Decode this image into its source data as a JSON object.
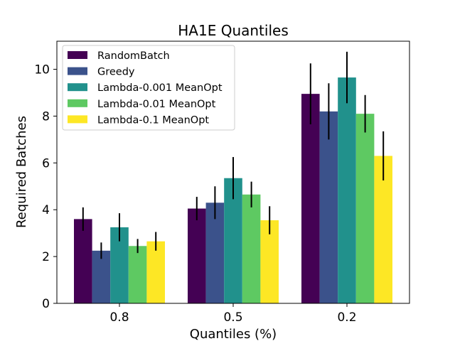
{
  "chart_data": {
    "type": "bar",
    "title": "HA1E Quantiles",
    "xlabel": "Quantiles (%)",
    "ylabel": "Required Batches",
    "categories": [
      "0.8",
      "0.5",
      "0.2"
    ],
    "ylim": [
      0,
      11.2
    ],
    "yticks": [
      0,
      2,
      4,
      6,
      8,
      10
    ],
    "legend_position": "top-left",
    "grid": false,
    "series": [
      {
        "name": "RandomBatch",
        "color": "#440154",
        "values": [
          3.6,
          4.05,
          8.95
        ],
        "errors": [
          0.5,
          0.5,
          1.3
        ]
      },
      {
        "name": "Greedy",
        "color": "#3b528b",
        "values": [
          2.25,
          4.3,
          8.2
        ],
        "errors": [
          0.35,
          0.7,
          1.2
        ]
      },
      {
        "name": "Lambda-0.001 MeanOpt",
        "color": "#21918c",
        "values": [
          3.25,
          5.35,
          9.65
        ],
        "errors": [
          0.6,
          0.9,
          1.1
        ]
      },
      {
        "name": "Lambda-0.01 MeanOpt",
        "color": "#5ec962",
        "values": [
          2.45,
          4.65,
          8.1
        ],
        "errors": [
          0.3,
          0.55,
          0.8
        ]
      },
      {
        "name": "Lambda-0.1 MeanOpt",
        "color": "#fde725",
        "values": [
          2.65,
          3.55,
          6.3
        ],
        "errors": [
          0.4,
          0.6,
          1.05
        ]
      }
    ]
  }
}
